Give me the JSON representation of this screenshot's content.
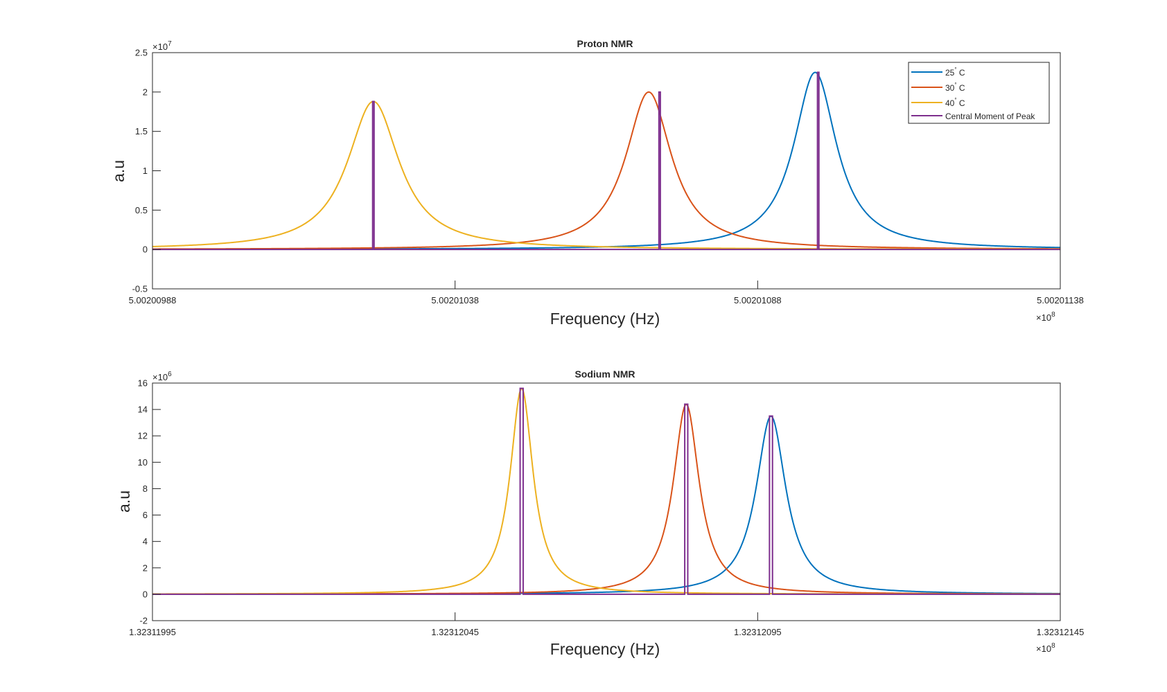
{
  "chart_data": [
    {
      "type": "line",
      "title": "Proton NMR",
      "xlabel": "Frequency (Hz)",
      "ylabel": "a.u",
      "xlim": [
        500200988.0,
        500201138.0
      ],
      "ylim": [
        -0.5,
        2.5
      ],
      "x_ticks": [
        500200988.0,
        500201038.0,
        500201088.0,
        500201138.0
      ],
      "x_tick_labels": [
        "5.00200988",
        "5.00201038",
        "5.00201088",
        "5.00201138"
      ],
      "x_exponent": {
        "base": "×10",
        "power": "8"
      },
      "y_ticks": [
        -0.5,
        0,
        0.5,
        1,
        1.5,
        2,
        2.5
      ],
      "y_tick_labels": [
        "-0.5",
        "0",
        "0.5",
        "1",
        "1.5",
        "2",
        "2.5"
      ],
      "y_exponent": {
        "base": "×10",
        "power": "7"
      },
      "grid": false,
      "legend_position": "top-right",
      "series": [
        {
          "name": "25° C",
          "label_num": "25",
          "label_unit": "C",
          "color": "#0072BD",
          "shape": "lorentzian",
          "center": 500201097.5,
          "peak": 2.25,
          "hwhm": 4.3,
          "tail_shift": 0.8
        },
        {
          "name": "30° C",
          "label_num": "30",
          "label_unit": "C",
          "color": "#D95319",
          "shape": "lorentzian",
          "center": 500201070.0,
          "peak": 2.0,
          "hwhm": 4.6,
          "tail_shift": 0.8
        },
        {
          "name": "40° C",
          "label_num": "40",
          "label_unit": "C",
          "color": "#EDB120",
          "shape": "lorentzian",
          "center": 500201024.5,
          "peak": 1.88,
          "hwhm": 5.2,
          "tail_shift": 0.6
        },
        {
          "name": "Central Moment of Peak",
          "color": "#7E2F8E",
          "shape": "impulses",
          "centers": [
            500201098.0,
            500201071.8,
            500201024.5
          ],
          "heights": [
            2.25,
            2.0,
            1.88
          ]
        }
      ]
    },
    {
      "type": "line",
      "title": "Sodium NMR",
      "xlabel": "Frequency (Hz)",
      "ylabel": "a.u",
      "xlim": [
        132311995.0,
        132312145.0
      ],
      "ylim": [
        -2,
        16
      ],
      "x_ticks": [
        132311995.0,
        132312045.0,
        132312095.0,
        132312145.0
      ],
      "x_tick_labels": [
        "1.32311995",
        "1.32312045",
        "1.32312095",
        "1.32312145"
      ],
      "x_exponent": {
        "base": "×10",
        "power": "8"
      },
      "y_ticks": [
        -2,
        0,
        2,
        4,
        6,
        8,
        10,
        12,
        14,
        16
      ],
      "y_tick_labels": [
        "-2",
        "0",
        "2",
        "4",
        "6",
        "8",
        "10",
        "12",
        "14",
        "16"
      ],
      "y_exponent": {
        "base": "×10",
        "power": "6"
      },
      "grid": false,
      "legend_position": "none",
      "series": [
        {
          "name": "25° C",
          "color": "#0072BD",
          "shape": "lorentzian",
          "center": 132312097.2,
          "peak": 13.5,
          "hwhm": 3.0,
          "tail_shift": 0.4
        },
        {
          "name": "30° C",
          "color": "#D95319",
          "shape": "lorentzian",
          "center": 132312083.2,
          "peak": 14.4,
          "hwhm": 2.6,
          "tail_shift": 0.3
        },
        {
          "name": "40° C",
          "color": "#EDB120",
          "shape": "lorentzian",
          "center": 132312056.0,
          "peak": 15.6,
          "hwhm": 2.3,
          "tail_shift": 0.3
        },
        {
          "name": "Central Moment of Peak",
          "color": "#7E2F8E",
          "shape": "pulses",
          "centers": [
            132312097.2,
            132312083.2,
            132312056.0
          ],
          "heights": [
            13.5,
            14.4,
            15.6
          ],
          "halfwidth": 0.25
        }
      ]
    }
  ]
}
